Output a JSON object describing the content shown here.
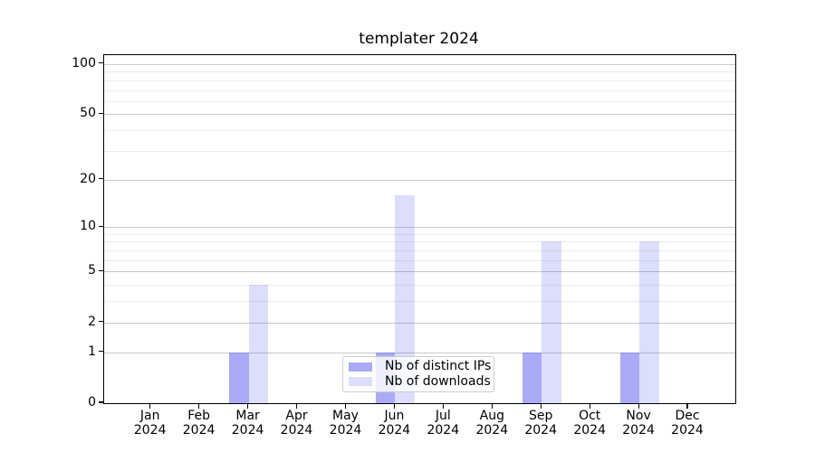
{
  "title": "templater 2024",
  "chart_data": {
    "type": "bar",
    "title": "templater 2024",
    "categories": [
      "Jan",
      "Feb",
      "Mar",
      "Apr",
      "May",
      "Jun",
      "Jul",
      "Aug",
      "Sep",
      "Oct",
      "Nov",
      "Dec"
    ],
    "category_year": "2024",
    "series": [
      {
        "name": "Nb of distinct IPs",
        "color": "rgba(85,85,240,0.5)",
        "values": [
          0,
          0,
          1,
          0,
          0,
          1,
          0,
          0,
          1,
          0,
          1,
          0
        ]
      },
      {
        "name": "Nb of downloads",
        "color": "rgba(85,85,240,0.2)",
        "values": [
          0,
          0,
          4,
          0,
          0,
          16,
          0,
          0,
          8,
          0,
          8,
          0
        ]
      }
    ],
    "xlabel": "",
    "ylabel": "",
    "y_axis": {
      "scale": "log1p",
      "ticks": [
        0,
        1,
        2,
        5,
        10,
        20,
        50,
        100
      ],
      "minor_ticks": [
        3,
        4,
        6,
        7,
        8,
        9,
        30,
        40,
        60,
        70,
        80,
        90
      ],
      "ylim": [
        0,
        113
      ]
    },
    "grid": true,
    "legend_position": "lower center"
  },
  "colors": {
    "major_grid": "#c9c9c9",
    "minor_grid": "#ebebeb",
    "spine": "#000000",
    "text": "#000000"
  }
}
